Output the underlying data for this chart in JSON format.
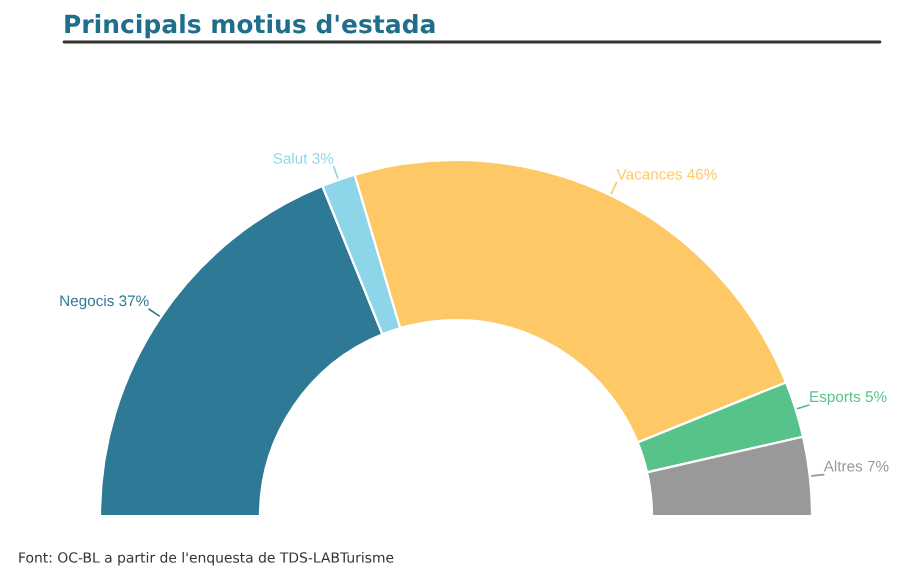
{
  "chart_data": {
    "type": "donut",
    "title": "Principals motius d'estada",
    "categories": [
      "Negocis",
      "Salut",
      "Vacances",
      "Esports",
      "Altres"
    ],
    "values": [
      37,
      3,
      46,
      5,
      7
    ],
    "colors": [
      "#2e7a96",
      "#8dd6ea",
      "#fdc865",
      "#58c28b",
      "#999999"
    ],
    "value_labels": [
      "37%",
      "3%",
      "46%",
      "5%",
      "7%"
    ],
    "annotations": [
      "Font: OC-BL a partir de l'enquesta de TDS-LABTurisme"
    ]
  }
}
